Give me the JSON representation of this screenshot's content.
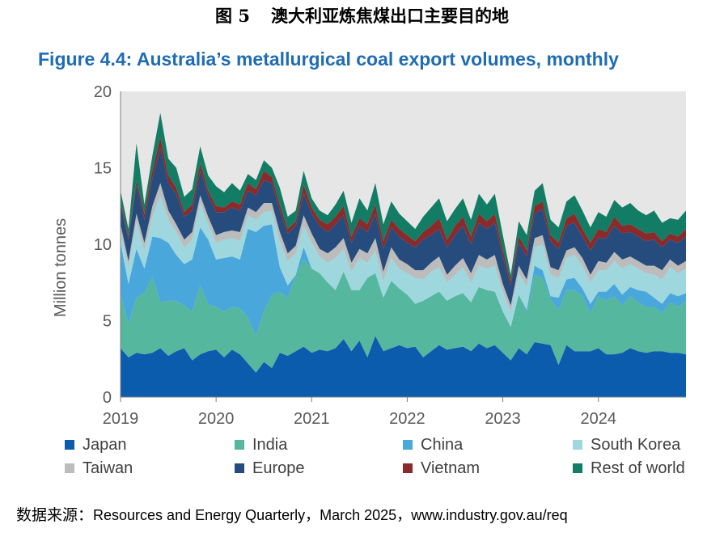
{
  "figure": {
    "number": "图 5",
    "title": "澳大利亚炼焦煤出口主要目的地"
  },
  "source": {
    "label": "数据来源：",
    "text": "Resources and Energy Quarterly，March 2025，www.industry.gov.au/req"
  },
  "colors": {
    "Japan": "#0b5cad",
    "India": "#55b79d",
    "China": "#4aa7dc",
    "South Korea": "#9fd7de",
    "Taiwan": "#bcbcbc",
    "Europe": "#264c7d",
    "Vietnam": "#8b2a2a",
    "Rest of world": "#127c65",
    "title": "#1f6cb5"
  },
  "chart_data": {
    "type": "area",
    "stacked": true,
    "title": "Figure 4.4: Australia’s metallurgical coal export volumes, monthly",
    "xlabel": "",
    "ylabel": "Million tonnes",
    "ylim": [
      0,
      20
    ],
    "yticks": [
      0,
      5,
      10,
      15,
      20
    ],
    "xticks": [
      "2019",
      "2020",
      "2021",
      "2022",
      "2023",
      "2024"
    ],
    "x_start": "2019-01",
    "x_end": "2024-12",
    "grid": false,
    "legend_position": "bottom",
    "series": [
      {
        "name": "Japan",
        "values": [
          3.2,
          2.6,
          2.9,
          2.8,
          2.9,
          3.2,
          2.7,
          3.0,
          3.2,
          2.4,
          2.8,
          3.0,
          3.1,
          2.6,
          3.1,
          2.8,
          2.2,
          1.6,
          2.3,
          1.9,
          2.9,
          2.7,
          3.0,
          3.3,
          2.9,
          3.1,
          3.0,
          3.2,
          3.8,
          3.0,
          3.7,
          2.6,
          4.0,
          3.0,
          3.2,
          3.4,
          3.2,
          3.3,
          2.6,
          3.0,
          3.4,
          3.1,
          3.2,
          3.3,
          3.0,
          3.5,
          3.2,
          3.4,
          2.9,
          2.4,
          3.2,
          2.8,
          3.6,
          3.5,
          3.4,
          2.1,
          3.4,
          3.0,
          3.0,
          3.0,
          3.2,
          2.8,
          2.8,
          2.9,
          3.2,
          3.0,
          2.9,
          3.0,
          3.0,
          2.9,
          2.9,
          2.8
        ]
      },
      {
        "name": "India",
        "values": [
          3.5,
          2.2,
          3.6,
          4.0,
          5.0,
          3.0,
          3.6,
          3.3,
          2.8,
          3.2,
          4.5,
          3.1,
          2.8,
          3.0,
          2.8,
          3.0,
          3.0,
          2.4,
          3.3,
          4.8,
          4.0,
          3.8,
          5.0,
          5.7,
          5.5,
          5.0,
          4.5,
          3.8,
          4.4,
          4.0,
          3.3,
          5.2,
          4.1,
          3.5,
          4.4,
          3.7,
          3.5,
          2.8,
          3.7,
          3.6,
          3.5,
          3.2,
          3.4,
          3.5,
          3.2,
          3.7,
          3.8,
          3.5,
          2.7,
          2.2,
          3.5,
          2.7,
          4.4,
          4.3,
          3.0,
          3.6,
          3.6,
          4.0,
          3.6,
          2.5,
          3.4,
          3.5,
          3.8,
          3.1,
          3.4,
          3.2,
          3.0,
          2.9,
          2.5,
          3.3,
          3.0,
          3.5
        ]
      },
      {
        "name": "China",
        "values": [
          3.4,
          2.6,
          3.2,
          1.6,
          2.6,
          4.2,
          3.8,
          3.0,
          2.7,
          3.4,
          3.8,
          4.2,
          3.1,
          3.5,
          3.3,
          3.2,
          5.8,
          6.8,
          5.6,
          4.6,
          1.6,
          0.8,
          0.0,
          0.8,
          0.0,
          0.0,
          0.0,
          0.0,
          0.0,
          0.0,
          0.0,
          0.0,
          0.0,
          0.0,
          0.0,
          0.0,
          0.0,
          0.0,
          0.0,
          0.0,
          0.0,
          0.0,
          0.0,
          0.0,
          0.0,
          0.0,
          0.0,
          0.0,
          0.0,
          0.0,
          0.0,
          0.2,
          0.6,
          0.5,
          0.2,
          0.8,
          0.7,
          0.8,
          0.5,
          0.6,
          0.3,
          0.6,
          0.8,
          0.7,
          0.6,
          0.8,
          1.0,
          0.6,
          0.6,
          0.6,
          0.7,
          0.5
        ]
      },
      {
        "name": "South Korea",
        "values": [
          0.8,
          1.1,
          1.7,
          1.2,
          1.3,
          2.8,
          1.5,
          1.5,
          1.1,
          1.3,
          1.6,
          1.0,
          1.1,
          1.2,
          1.2,
          1.2,
          0.9,
          0.8,
          0.9,
          0.9,
          1.7,
          1.6,
          1.4,
          1.4,
          1.7,
          1.1,
          1.3,
          2.1,
          1.5,
          1.2,
          2.1,
          1.0,
          1.5,
          1.1,
          1.5,
          1.3,
          1.4,
          1.7,
          1.4,
          1.6,
          1.6,
          1.2,
          1.4,
          1.7,
          1.3,
          1.4,
          1.4,
          1.7,
          1.3,
          1.0,
          1.4,
          1.5,
          1.2,
          1.7,
          1.4,
          1.3,
          1.4,
          1.5,
          1.5,
          1.4,
          1.4,
          1.4,
          1.5,
          1.7,
          1.5,
          1.4,
          1.2,
          1.5,
          1.6,
          1.7,
          1.5,
          1.6
        ]
      },
      {
        "name": "Taiwan",
        "values": [
          0.4,
          0.4,
          0.6,
          0.5,
          0.7,
          0.8,
          0.6,
          0.5,
          0.5,
          0.5,
          0.5,
          0.5,
          0.5,
          0.5,
          0.5,
          0.6,
          0.5,
          0.5,
          0.6,
          0.5,
          0.6,
          0.5,
          0.5,
          0.7,
          0.6,
          0.5,
          0.6,
          0.7,
          0.7,
          0.6,
          0.6,
          0.6,
          0.8,
          0.6,
          0.7,
          0.6,
          0.6,
          0.5,
          0.6,
          0.6,
          0.7,
          0.5,
          0.6,
          0.6,
          0.6,
          0.7,
          0.6,
          0.7,
          0.5,
          0.4,
          0.5,
          0.5,
          0.6,
          0.6,
          0.5,
          0.5,
          0.5,
          0.5,
          0.5,
          0.5,
          0.6,
          0.5,
          0.6,
          0.6,
          0.5,
          0.5,
          0.5,
          0.6,
          0.6,
          0.5,
          0.5,
          0.5
        ]
      },
      {
        "name": "Europe",
        "values": [
          1.3,
          1.4,
          1.9,
          1.5,
          1.8,
          2.3,
          1.8,
          2.0,
          1.5,
          1.4,
          1.6,
          1.4,
          1.5,
          1.3,
          1.5,
          1.4,
          1.1,
          1.1,
          1.5,
          1.3,
          1.4,
          1.3,
          1.3,
          1.4,
          1.3,
          1.5,
          1.4,
          1.5,
          1.5,
          1.3,
          1.5,
          1.4,
          1.6,
          1.5,
          1.3,
          1.5,
          1.4,
          1.5,
          2.0,
          1.8,
          1.8,
          1.8,
          2.0,
          2.1,
          1.9,
          2.1,
          2.0,
          2.1,
          1.8,
          1.3,
          1.5,
          1.5,
          1.6,
          1.7,
          1.7,
          1.4,
          1.6,
          1.6,
          1.4,
          1.6,
          1.5,
          1.6,
          1.7,
          1.7,
          1.6,
          1.6,
          1.6,
          1.7,
          1.5,
          1.3,
          1.5,
          1.6
        ]
      },
      {
        "name": "Vietnam",
        "values": [
          0.2,
          0.2,
          0.3,
          0.4,
          0.5,
          0.7,
          0.5,
          0.4,
          0.3,
          0.4,
          0.5,
          0.3,
          0.4,
          0.3,
          0.4,
          0.4,
          0.5,
          0.4,
          0.6,
          0.4,
          0.4,
          0.3,
          0.3,
          0.6,
          0.4,
          0.4,
          0.5,
          0.5,
          0.6,
          0.4,
          0.5,
          0.5,
          0.6,
          0.5,
          0.5,
          0.5,
          0.5,
          0.4,
          0.5,
          0.6,
          0.7,
          0.5,
          0.6,
          0.6,
          0.5,
          0.6,
          0.5,
          0.6,
          0.4,
          0.3,
          0.4,
          0.4,
          0.5,
          0.5,
          0.4,
          0.4,
          0.5,
          0.6,
          0.5,
          0.5,
          0.6,
          0.4,
          0.6,
          0.5,
          0.5,
          0.5,
          0.5,
          0.5,
          0.4,
          0.4,
          0.4,
          0.5
        ]
      },
      {
        "name": "Rest of world",
        "values": [
          0.7,
          0.5,
          2.4,
          0.6,
          1.0,
          1.6,
          1.1,
          1.3,
          1.0,
          1.0,
          1.1,
          1.0,
          1.3,
          1.0,
          1.2,
          0.9,
          0.6,
          0.6,
          0.7,
          0.6,
          1.1,
          0.8,
          0.7,
          0.9,
          0.6,
          0.6,
          0.6,
          0.8,
          1.0,
          0.9,
          1.3,
          0.9,
          1.4,
          1.1,
          1.2,
          1.0,
          0.9,
          0.8,
          1.0,
          1.2,
          1.3,
          1.2,
          1.1,
          1.2,
          1.1,
          1.3,
          1.1,
          1.3,
          1.0,
          0.4,
          1.0,
          1.0,
          1.0,
          1.2,
          1.0,
          1.0,
          1.1,
          1.2,
          1.2,
          1.0,
          1.1,
          1.0,
          1.1,
          1.2,
          1.4,
          1.2,
          1.2,
          1.4,
          1.2,
          1.0,
          1.1,
          1.2
        ]
      }
    ]
  }
}
